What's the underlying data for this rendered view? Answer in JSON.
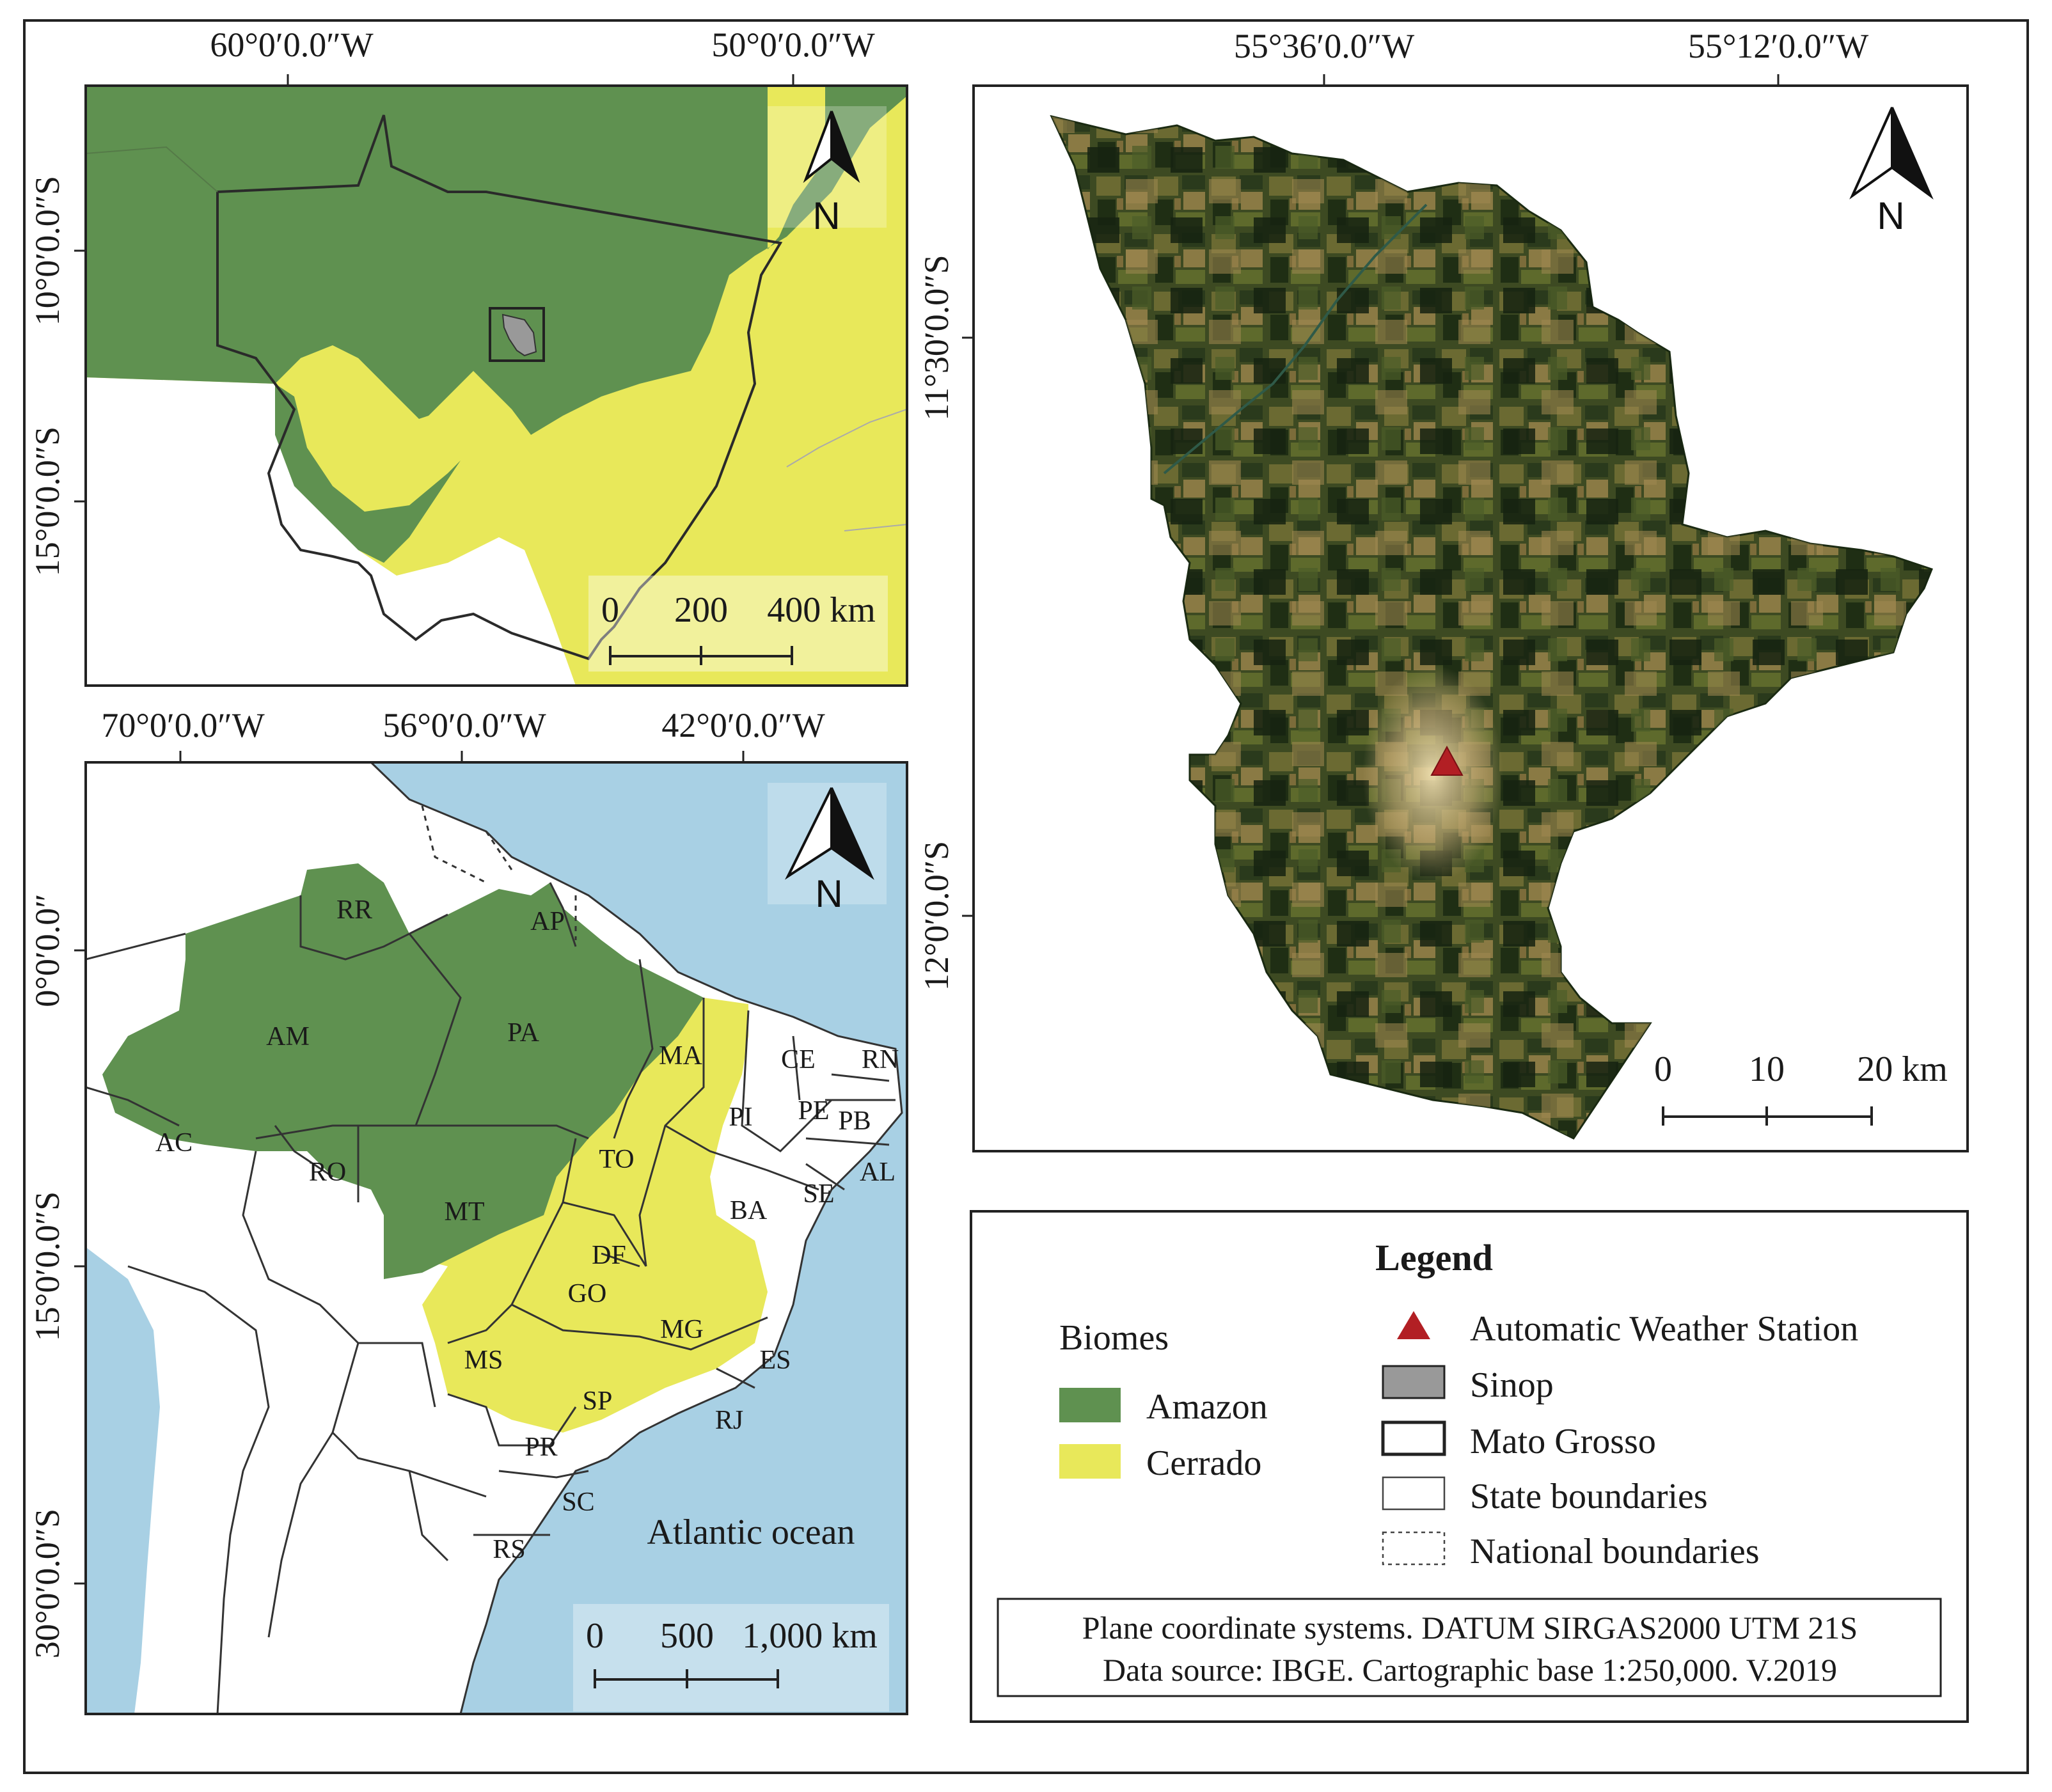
{
  "top_left_map": {
    "lon_ticks": [
      "60°0′0.0″W",
      "50°0′0.0″W"
    ],
    "lat_ticks": [
      "10°0′0.0″S",
      "15°0′0.0″S"
    ],
    "scale": [
      "0",
      "200",
      "400 km"
    ],
    "north": "N"
  },
  "bottom_left_map": {
    "lon_ticks": [
      "70°0′0.0″W",
      "56°0′0.0″W",
      "42°0′0.0″W"
    ],
    "lat_ticks": [
      "0°0′0.0″",
      "15°0′0.0″S",
      "30°0′0.0″S"
    ],
    "states": [
      "RR",
      "AP",
      "AM",
      "PA",
      "MA",
      "CE",
      "RN",
      "PI",
      "PE",
      "PB",
      "AC",
      "RO",
      "TO",
      "AL",
      "SE",
      "BA",
      "MT",
      "DF",
      "GO",
      "MG",
      "MS",
      "ES",
      "SP",
      "RJ",
      "PR",
      "SC",
      "RS"
    ],
    "ocean": "Atlantic ocean",
    "scale": [
      "0",
      "500",
      "1,000 km"
    ],
    "north": "N"
  },
  "right_map": {
    "lon_ticks": [
      "55°36′0.0″W",
      "55°12′0.0″W"
    ],
    "lat_ticks": [
      "11°30′0.0″S",
      "12°0′0.0″S"
    ],
    "scale": [
      "0",
      "10",
      "20 km"
    ],
    "north": "N"
  },
  "legend": {
    "title": "Legend",
    "biomes_heading": "Biomes",
    "biomes": [
      {
        "label": "Amazon",
        "color": "#5f9150"
      },
      {
        "label": "Cerrado",
        "color": "#e8e85a"
      }
    ],
    "items": [
      {
        "label": "Automatic Weather Station",
        "symbol": "triangle",
        "color": "#b21f24"
      },
      {
        "label": "Sinop",
        "symbol": "box",
        "color": "#999999"
      },
      {
        "label": "Mato Grosso",
        "symbol": "box-bold",
        "color": "#ffffff"
      },
      {
        "label": "State boundaries",
        "symbol": "box",
        "color": "#ffffff"
      },
      {
        "label": "National boundaries",
        "symbol": "box-dashed",
        "color": "#ffffff"
      }
    ],
    "note_lines": [
      "Plane coordinate systems. DATUM SIRGAS2000 UTM 21S",
      "Data source: IBGE. Cartographic base 1:250,000. V.2019"
    ]
  },
  "colors": {
    "amazon": "#5f9150",
    "cerrado": "#e8e85a",
    "ocean": "#a8d0e4",
    "station": "#b21f24",
    "sinop": "#999999"
  }
}
